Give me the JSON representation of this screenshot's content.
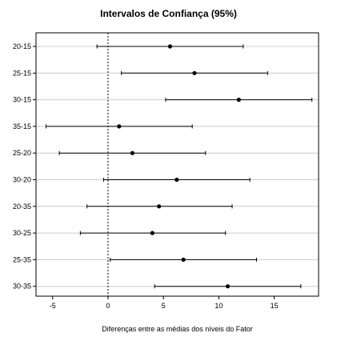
{
  "chart_data": {
    "type": "scatter",
    "title": "Intervalos de Confiança (95%)",
    "xlabel": "Diferenças entre as médias dos níveis do Fator",
    "ylabel": "",
    "xlim": [
      -6.5,
      19
    ],
    "x_ticks": [
      -5,
      0,
      5,
      10,
      15
    ],
    "reference_line": 0,
    "grid": "horizontal",
    "categories": [
      "20-15",
      "25-15",
      "30-15",
      "35-15",
      "25-20",
      "30-20",
      "20-35",
      "30-25",
      "25-35",
      "30-35"
    ],
    "series": [
      {
        "estimate": [
          5.6,
          7.8,
          11.8,
          1.0,
          2.2,
          6.2,
          4.6,
          4.0,
          6.8,
          10.8
        ],
        "lower": [
          -1.0,
          1.2,
          5.2,
          -5.6,
          -4.4,
          -0.4,
          -1.9,
          -2.5,
          0.2,
          4.2
        ],
        "upper": [
          12.2,
          14.4,
          18.4,
          7.6,
          8.8,
          12.8,
          11.2,
          10.6,
          13.4,
          17.4
        ]
      }
    ]
  }
}
